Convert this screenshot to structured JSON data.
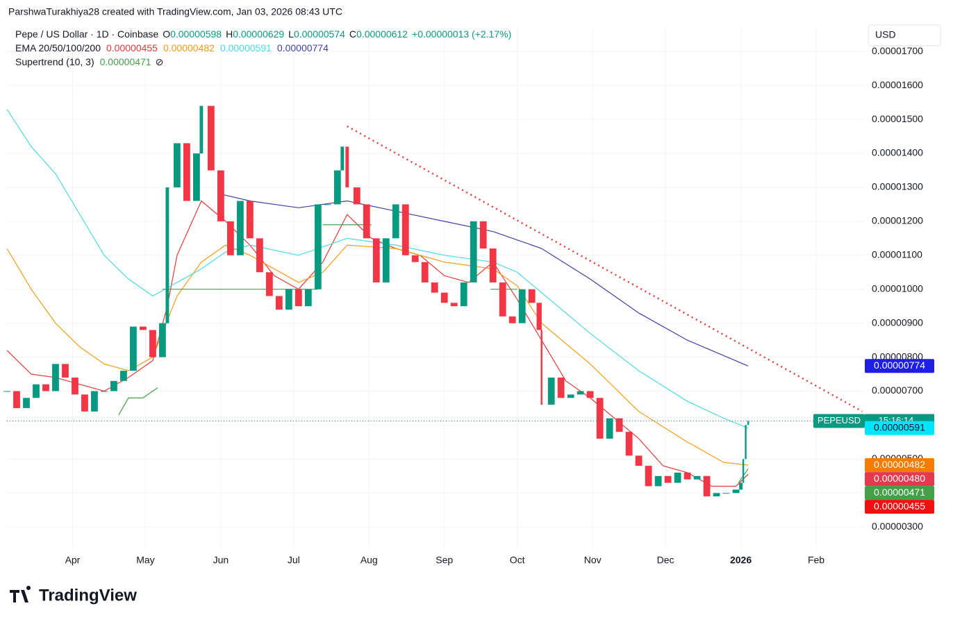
{
  "header": {
    "credit": "ParshwaTurakhiya28 created with TradingView.com, Jan 03, 2026 08:43 UTC",
    "symbol": "Pepe / US Dollar · 1D · Coinbase",
    "ohlc": [
      {
        "key": "O",
        "value": "0.00000598"
      },
      {
        "key": "H",
        "value": "0.00000629"
      },
      {
        "key": "L",
        "value": "0.00000574"
      },
      {
        "key": "C",
        "value": "0.00000612"
      }
    ],
    "change": "+0.00000013 (+2.17%)",
    "supertrend_label": "Supertrend (10, 3)",
    "supertrend_icon": "⊘",
    "currency": "USD",
    "logo": "TradingView"
  },
  "chart_data": {
    "type": "candlestick",
    "countdown": "15:16:14",
    "xlim": [
      0,
      353
    ],
    "xticks": [
      {
        "value": 27,
        "label": "Apr"
      },
      {
        "value": 57,
        "label": "May"
      },
      {
        "value": 88,
        "label": "Jun"
      },
      {
        "value": 118,
        "label": "Jul"
      },
      {
        "value": 149,
        "label": "Aug"
      },
      {
        "value": 180,
        "label": "Sep"
      },
      {
        "value": 210,
        "label": "Oct"
      },
      {
        "value": 241,
        "label": "Nov"
      },
      {
        "value": 271,
        "label": "Dec"
      },
      {
        "value": 302,
        "label": "2026"
      },
      {
        "value": 333,
        "label": "Feb"
      }
    ],
    "ylim": [
      2.37e-06,
      1.77e-05
    ],
    "yticks": [
      {
        "value": 3e-06,
        "label": "0.00000300"
      },
      {
        "value": 4e-06,
        "label": "0.00000400"
      },
      {
        "value": 5e-06,
        "label": "0.00000500"
      },
      {
        "value": 6e-06,
        "label": "0.00000600"
      },
      {
        "value": 7e-06,
        "label": "0.00000700"
      },
      {
        "value": 8e-06,
        "label": "0.00000800"
      },
      {
        "value": 9e-06,
        "label": "0.00000900"
      },
      {
        "value": 1e-05,
        "label": "0.00001000"
      },
      {
        "value": 1.1e-05,
        "label": "0.00001100"
      },
      {
        "value": 1.2e-05,
        "label": "0.00001200"
      },
      {
        "value": 1.3e-05,
        "label": "0.00001300"
      },
      {
        "value": 1.4e-05,
        "label": "0.00001400"
      },
      {
        "value": 1.5e-05,
        "label": "0.00001500"
      },
      {
        "value": 1.6e-05,
        "label": "0.00001600"
      },
      {
        "value": 1.7e-05,
        "label": "0.00001700"
      }
    ],
    "grid": true,
    "series": [
      {
        "name": "PEPEUSD",
        "up_color": "#089981",
        "down_color": "#f23645",
        "x": [
          0,
          4,
          8,
          12,
          16,
          20,
          24,
          28,
          32,
          36,
          40,
          44,
          48,
          52,
          56,
          60,
          64,
          66,
          70,
          74,
          78,
          80,
          84,
          88,
          92,
          96,
          100,
          104,
          108,
          112,
          116,
          120,
          124,
          128,
          132,
          136,
          138,
          140,
          144,
          148,
          152,
          156,
          160,
          164,
          168,
          172,
          176,
          180,
          184,
          188,
          192,
          196,
          200,
          204,
          208,
          212,
          216,
          219,
          220,
          224,
          228,
          232,
          236,
          240,
          244,
          248,
          252,
          256,
          260,
          264,
          268,
          272,
          276,
          280,
          284,
          288,
          292,
          296,
          300,
          302,
          303,
          304,
          305
        ],
        "values": [
          7e-06,
          6.5e-06,
          6.8e-06,
          7.2e-06,
          7e-06,
          7.8e-06,
          7.4e-06,
          6.9e-06,
          6.4e-06,
          7e-06,
          7e-06,
          7.3e-06,
          7.6e-06,
          8.9e-06,
          8.8e-06,
          8e-06,
          9e-06,
          1.3e-05,
          1.43e-05,
          1.26e-05,
          1.4e-05,
          1.54e-05,
          1.35e-05,
          1.2e-05,
          1.1e-05,
          1.26e-05,
          1.15e-05,
          1.05e-05,
          9.8e-06,
          9.4e-06,
          1e-05,
          9.5e-06,
          1e-05,
          1.25e-05,
          1.25e-05,
          1.35e-05,
          1.42e-05,
          1.3e-05,
          1.25e-05,
          1.15e-05,
          1.02e-05,
          1.15e-05,
          1.25e-05,
          1.1e-05,
          1.08e-05,
          1.02e-05,
          9.9e-06,
          9.6e-06,
          9.5e-06,
          1.02e-05,
          1.2e-05,
          1.12e-05,
          1.02e-05,
          9.2e-06,
          9e-06,
          1e-05,
          9.6e-06,
          8.8e-06,
          6.6e-06,
          7.4e-06,
          6.8e-06,
          6.9e-06,
          7e-06,
          6.8e-06,
          5.6e-06,
          6.2e-06,
          5.8e-06,
          5.1e-06,
          4.8e-06,
          4.2e-06,
          4.5e-06,
          4.3e-06,
          4.6e-06,
          4.4e-06,
          4.5e-06,
          3.9e-06,
          4e-06,
          4e-06,
          4.1e-06,
          4.3e-06,
          5e-06,
          6e-06,
          6.12e-06
        ]
      }
    ],
    "ema": {
      "label": "EMA 20/50/100/200",
      "lines": [
        {
          "color": "#e53935",
          "value_label": "0.00000455",
          "x": [
            0,
            10,
            20,
            30,
            40,
            50,
            60,
            66,
            70,
            80,
            90,
            100,
            110,
            120,
            130,
            140,
            150,
            160,
            170,
            180,
            190,
            200,
            210,
            220,
            230,
            240,
            250,
            260,
            270,
            280,
            290,
            300,
            305
          ],
          "values": [
            8.2e-06,
            7.5e-06,
            7.4e-06,
            7.2e-06,
            7e-06,
            7.4e-06,
            7.9e-06,
            9.5e-06,
            1.1e-05,
            1.26e-05,
            1.2e-05,
            1.13e-05,
            1.04e-05,
            1e-05,
            1.08e-05,
            1.22e-05,
            1.15e-05,
            1.12e-05,
            1.1e-05,
            1.04e-05,
            1.02e-05,
            1.08e-05,
            9.7e-06,
            8.5e-06,
            7.3e-06,
            6.8e-06,
            6.2e-06,
            5.6e-06,
            4.8e-06,
            4.6e-06,
            4.2e-06,
            4.2e-06,
            4.55e-06
          ]
        },
        {
          "color": "#f39c12",
          "value_label": "0.00000482",
          "x": [
            0,
            10,
            20,
            30,
            40,
            50,
            60,
            70,
            80,
            90,
            100,
            120,
            130,
            140,
            160,
            180,
            200,
            210,
            220,
            240,
            260,
            280,
            295,
            305
          ],
          "values": [
            1.12e-05,
            1e-05,
            9e-06,
            8.3e-06,
            7.8e-06,
            7.6e-06,
            8e-06,
            9.8e-06,
            1.08e-05,
            1.13e-05,
            1.1e-05,
            1.02e-05,
            1.05e-05,
            1.13e-05,
            1.12e-05,
            1.08e-05,
            1.06e-05,
            1.01e-05,
            9e-06,
            7.8e-06,
            6.4e-06,
            5.5e-06,
            4.9e-06,
            4.82e-06
          ]
        },
        {
          "color": "#4dd8e0",
          "value_label": "0.00000591",
          "x": [
            0,
            10,
            20,
            30,
            40,
            50,
            60,
            70,
            80,
            90,
            100,
            120,
            140,
            160,
            180,
            200,
            210,
            220,
            240,
            260,
            280,
            295,
            305
          ],
          "values": [
            1.53e-05,
            1.42e-05,
            1.34e-05,
            1.22e-05,
            1.1e-05,
            1.03e-05,
            9.8e-06,
            1.02e-05,
            1.06e-05,
            1.11e-05,
            1.13e-05,
            1.1e-05,
            1.15e-05,
            1.13e-05,
            1.1e-05,
            1.08e-05,
            1.05e-05,
            9.9e-06,
            8.7e-06,
            7.6e-06,
            6.7e-06,
            6.2e-06,
            5.91e-06
          ]
        },
        {
          "color": "#3f3fa8",
          "value_label": "0.00000774",
          "x": [
            88,
            100,
            120,
            140,
            160,
            180,
            200,
            220,
            240,
            260,
            280,
            305
          ],
          "values": [
            1.28e-05,
            1.26e-05,
            1.24e-05,
            1.26e-05,
            1.23e-05,
            1.2e-05,
            1.17e-05,
            1.12e-05,
            1.03e-05,
            9.3e-06,
            8.5e-06,
            7.74e-06
          ]
        }
      ]
    },
    "supertrend": {
      "color": "#43a047",
      "value_label": "0.00000471",
      "x": [
        46,
        50,
        56,
        62,
        63,
        64,
        128,
        129,
        130,
        150,
        198,
        199,
        200,
        210,
        300,
        301,
        305
      ],
      "values": [
        6.3e-06,
        6.8e-06,
        6.8e-06,
        7.1e-06,
        null,
        1e-05,
        1e-05,
        null,
        1.19e-05,
        1.19e-05,
        null,
        1e-05,
        1e-05,
        1e-05,
        null,
        4.3e-06,
        4.71e-06
      ]
    },
    "trendline": {
      "color": "#e53935",
      "x": [
        140,
        352
      ],
      "values": [
        1.48e-05,
        6.4e-06
      ]
    },
    "price_tags": [
      {
        "value": 7.74e-06,
        "label": "0.00000774",
        "color": "#1e1ee6"
      },
      {
        "value": 5.91e-06,
        "label": "0.00000591",
        "color": "#00e5ff"
      },
      {
        "value": 4.82e-06,
        "label": "0.00000482",
        "color": "#f57c00"
      },
      {
        "value": 4.8e-06,
        "label": "0.00000480",
        "color": "#e53950"
      },
      {
        "value": 4.71e-06,
        "label": "0.00000471",
        "color": "#43a047"
      },
      {
        "value": 4.55e-06,
        "label": "0.00000455",
        "color": "#f20f0f"
      }
    ]
  }
}
